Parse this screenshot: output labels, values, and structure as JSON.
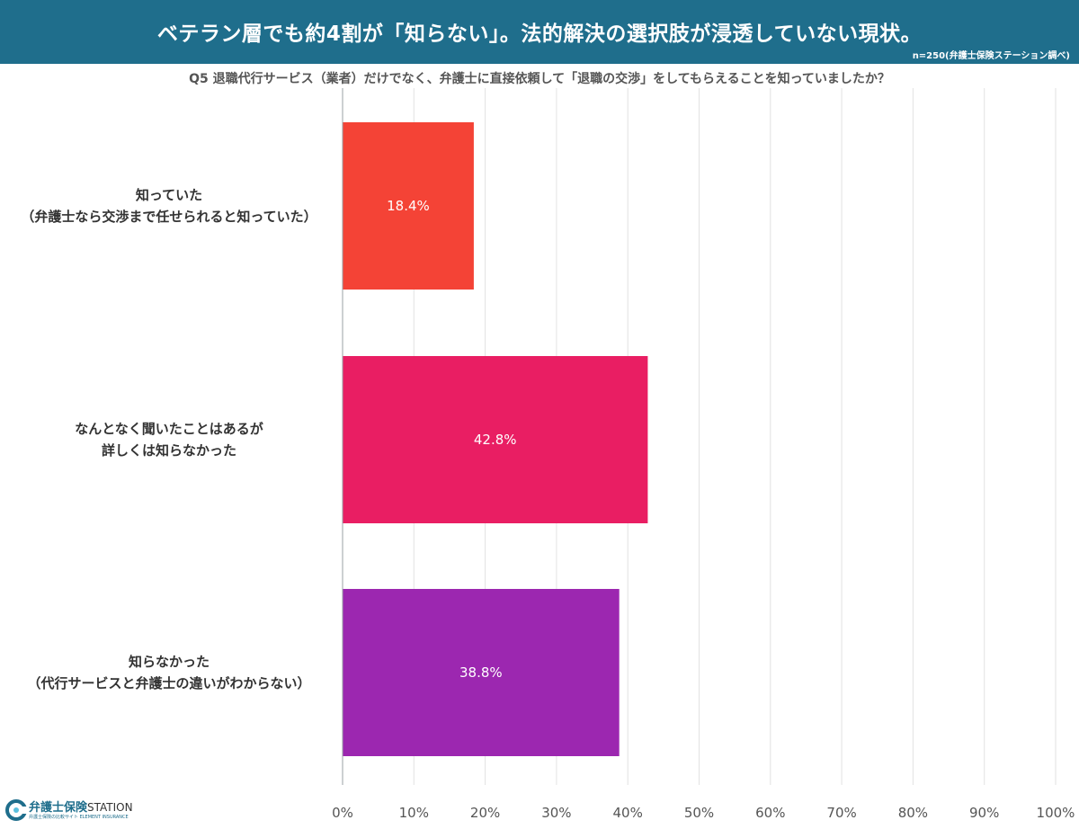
{
  "header": {
    "title": "ベテラン層でも約4割が「知らない」。法的解決の選択肢が浸透していない現状。",
    "note": "n=250(弁護士保険ステーション調べ)"
  },
  "question": "Q5 退職代行サービス（業者）だけでなく、弁護士に直接依頼して「退職の交渉」をしてもらえることを知っていましたか？",
  "logo": {
    "name": "弁護士保険",
    "station": "STATION",
    "sub": "弁護士保険の比較サイト ELEMENT INSURANCE"
  },
  "colors": {
    "banner": "#1f6e8c",
    "bar_1": "#f44336",
    "bar_2": "#e91e63",
    "bar_3": "#9c27b0"
  },
  "chart_data": {
    "type": "bar",
    "orientation": "horizontal",
    "categories": [
      [
        "知っていた",
        "（弁護士なら交渉まで任せられると知っていた）"
      ],
      [
        "なんとなく聞いたことはあるが",
        "詳しくは知らなかった"
      ],
      [
        "知らなかった",
        "（代行サービスと弁護士の違いがわからない）"
      ]
    ],
    "values": [
      18.4,
      42.8,
      38.8
    ],
    "value_labels": [
      "18.4%",
      "42.8%",
      "38.8%"
    ],
    "xlim": [
      0,
      100
    ],
    "xticks": [
      "0%",
      "10%",
      "20%",
      "30%",
      "40%",
      "50%",
      "60%",
      "70%",
      "80%",
      "90%",
      "100%"
    ],
    "grid": true,
    "legend": "none"
  }
}
